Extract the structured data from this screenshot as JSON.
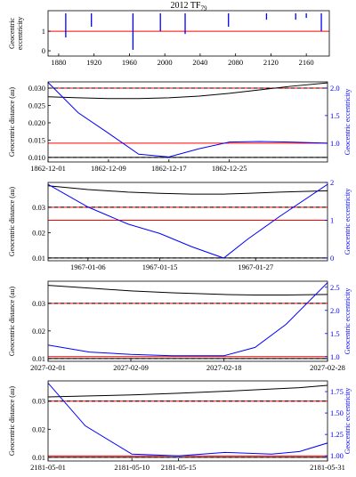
{
  "chart_data": [
    {
      "type": "stem",
      "title": "2012 TF",
      "title_subscript": "79",
      "ylabel": [
        "Geocentric",
        "eccentricity"
      ],
      "x": [
        1888,
        1917,
        1964,
        1995,
        2023,
        2072,
        2115,
        2148,
        2160,
        2177
      ],
      "values": [
        0.68,
        1.23,
        0.05,
        1.0,
        0.86,
        1.23,
        1.59,
        1.59,
        1.68,
        1.0
      ],
      "color": "#0000ff",
      "xlim": [
        1868,
        2186
      ],
      "ylim": [
        -0.27,
        2.05
      ],
      "xticks": [
        1880,
        1920,
        1960,
        2000,
        2040,
        2080,
        2120,
        2160
      ],
      "yticks": [
        0,
        1
      ],
      "hlines": [
        {
          "value": 1,
          "axis": "y",
          "color": "#ff0000",
          "dash": false
        }
      ]
    },
    {
      "type": "line",
      "ylabel": "Geocentric distance (au)",
      "y2label": "Geocentric eccentricity",
      "x": [
        "1862-12-01",
        "1862-12-05",
        "1862-12-09",
        "1862-12-13",
        "1862-12-17",
        "1862-12-21",
        "1862-12-25",
        "1862-12-29",
        "1863-01-02",
        "1863-01-07"
      ],
      "series": [
        {
          "color": "#000000",
          "axis": "y",
          "values": [
            0.0275,
            0.0272,
            0.027,
            0.027,
            0.0272,
            0.0277,
            0.0285,
            0.0295,
            0.0305,
            0.0315
          ]
        },
        {
          "color": "#0000ff",
          "axis": "y2",
          "values": [
            2.1,
            1.55,
            1.18,
            0.8,
            0.75,
            0.9,
            1.02,
            1.03,
            1.02,
            1.0
          ]
        }
      ],
      "xlim": [
        "1862-12-01",
        "1863-01-07"
      ],
      "ylim": [
        0.0087,
        0.0318
      ],
      "y2lim": [
        0.66,
        2.11
      ],
      "xticks": [
        "1862-12-01",
        "1862-12-09",
        "1862-12-17",
        "1862-12-25"
      ],
      "yticks": [
        {
          "value": 0.01,
          "label": "0.010"
        },
        {
          "value": 0.015,
          "label": "0.015"
        },
        {
          "value": 0.02,
          "label": "0.020"
        },
        {
          "value": 0.025,
          "label": "0.025"
        },
        {
          "value": 0.03,
          "label": "0.030"
        }
      ],
      "y2ticks": [
        {
          "value": 1,
          "label": "1.0"
        },
        {
          "value": 1.5,
          "label": "1.5"
        },
        {
          "value": 2,
          "label": "2.0"
        }
      ],
      "hlines": [
        {
          "value": 0.03,
          "axis": "y",
          "color": "#ff0000",
          "dash": true
        },
        {
          "value": 0.01,
          "axis": "y",
          "color": "#000000",
          "dash": true
        },
        {
          "value": 1,
          "axis": "y2",
          "color": "#ff0000",
          "dash": false
        }
      ]
    },
    {
      "type": "line",
      "ylabel": "Geocentric distance (au)",
      "y2label": "Geocentric eccentricity",
      "x": [
        "1967-01-01",
        "1967-01-06",
        "1967-01-11",
        "1967-01-15",
        "1967-01-19",
        "1967-01-23",
        "1967-01-26",
        "1967-01-30",
        "1967-02-05"
      ],
      "series": [
        {
          "color": "#000000",
          "axis": "y",
          "values": [
            0.0385,
            0.037,
            0.036,
            0.0355,
            0.0352,
            0.0352,
            0.0355,
            0.036,
            0.0365
          ]
        },
        {
          "color": "#0000ff",
          "axis": "y2",
          "values": [
            1.95,
            1.35,
            0.9,
            0.65,
            0.3,
            0.0,
            0.5,
            1.1,
            1.95
          ]
        }
      ],
      "xlim": [
        "1967-01-01",
        "1967-02-05"
      ],
      "ylim": [
        0.0089,
        0.0398
      ],
      "y2lim": [
        -0.07,
        2.0
      ],
      "xticks": [
        "1967-01-06",
        "1967-01-15",
        "1967-01-27"
      ],
      "yticks": [
        {
          "value": 0.01,
          "label": "0.01"
        },
        {
          "value": 0.02,
          "label": "0.02"
        },
        {
          "value": 0.03,
          "label": "0.03"
        }
      ],
      "y2ticks": [
        0,
        1,
        2
      ],
      "hlines": [
        {
          "value": 0.03,
          "axis": "y",
          "color": "#ff0000",
          "dash": true
        },
        {
          "value": 0.01,
          "axis": "y",
          "color": "#000000",
          "dash": true
        },
        {
          "value": 1,
          "axis": "y2",
          "color": "#ff0000",
          "dash": false
        }
      ]
    },
    {
      "type": "line",
      "ylabel": "Geocentric distance (au)",
      "y2label": "Geocentric eccentricity",
      "x": [
        "2027-02-01",
        "2027-02-05",
        "2027-02-09",
        "2027-02-13",
        "2027-02-18",
        "2027-02-21",
        "2027-02-24",
        "2027-02-28"
      ],
      "series": [
        {
          "color": "#000000",
          "axis": "y",
          "values": [
            0.0365,
            0.0355,
            0.0345,
            0.0338,
            0.0332,
            0.033,
            0.033,
            0.0332
          ]
        },
        {
          "color": "#0000ff",
          "axis": "y2",
          "values": [
            1.25,
            1.1,
            1.05,
            1.02,
            1.02,
            1.2,
            1.7,
            2.6
          ]
        }
      ],
      "xlim": [
        "2027-02-01",
        "2027-02-28"
      ],
      "ylim": [
        0.009,
        0.038
      ],
      "y2lim": [
        0.9,
        2.63
      ],
      "xticks": [
        "2027-02-01",
        "2027-02-09",
        "2027-02-18",
        "2027-02-28"
      ],
      "yticks": [
        {
          "value": 0.01,
          "label": "0.01"
        },
        {
          "value": 0.02,
          "label": "0.02"
        },
        {
          "value": 0.03,
          "label": "0.03"
        }
      ],
      "y2ticks": [
        {
          "value": 1,
          "label": "1.0"
        },
        {
          "value": 1.5,
          "label": "1.5"
        },
        {
          "value": 2,
          "label": "2.0"
        },
        {
          "value": 2.5,
          "label": "2.5"
        }
      ],
      "hlines": [
        {
          "value": 0.03,
          "axis": "y",
          "color": "#ff0000",
          "dash": true
        },
        {
          "value": 0.01,
          "axis": "y",
          "color": "#000000",
          "dash": true
        },
        {
          "value": 1,
          "axis": "y2",
          "color": "#ff0000",
          "dash": false
        }
      ]
    },
    {
      "type": "line",
      "ylabel": "Geocentric distance (au)",
      "y2label": "Geocentric eccentricity",
      "x": [
        "2181-05-01",
        "2181-05-05",
        "2181-05-10",
        "2181-05-15",
        "2181-05-20",
        "2181-05-25",
        "2181-05-28",
        "2181-05-31"
      ],
      "series": [
        {
          "color": "#000000",
          "axis": "y",
          "values": [
            0.0315,
            0.0318,
            0.0322,
            0.0328,
            0.0335,
            0.0343,
            0.0348,
            0.0356
          ]
        },
        {
          "color": "#0000ff",
          "axis": "y2",
          "values": [
            1.85,
            1.35,
            1.02,
            1.0,
            1.04,
            1.02,
            1.05,
            1.15
          ]
        }
      ],
      "xlim": [
        "2181-05-01",
        "2181-05-31"
      ],
      "ylim": [
        0.0087,
        0.0372
      ],
      "y2lim": [
        0.94,
        1.875
      ],
      "xticks": [
        "2181-05-01",
        "2181-05-10",
        "2181-05-15",
        "2181-05-31"
      ],
      "yticks": [
        {
          "value": 0.01,
          "label": "0.01"
        },
        {
          "value": 0.02,
          "label": "0.02"
        },
        {
          "value": 0.03,
          "label": "0.03"
        }
      ],
      "y2ticks": [
        {
          "value": 1,
          "label": "1.00"
        },
        {
          "value": 1.25,
          "label": "1.25"
        },
        {
          "value": 1.5,
          "label": "1.50"
        },
        {
          "value": 1.75,
          "label": "1.75"
        }
      ],
      "hlines": [
        {
          "value": 0.03,
          "axis": "y",
          "color": "#ff0000",
          "dash": true
        },
        {
          "value": 0.01,
          "axis": "y",
          "color": "#000000",
          "dash": true
        },
        {
          "value": 1,
          "axis": "y2",
          "color": "#ff0000",
          "dash": false
        }
      ]
    }
  ]
}
